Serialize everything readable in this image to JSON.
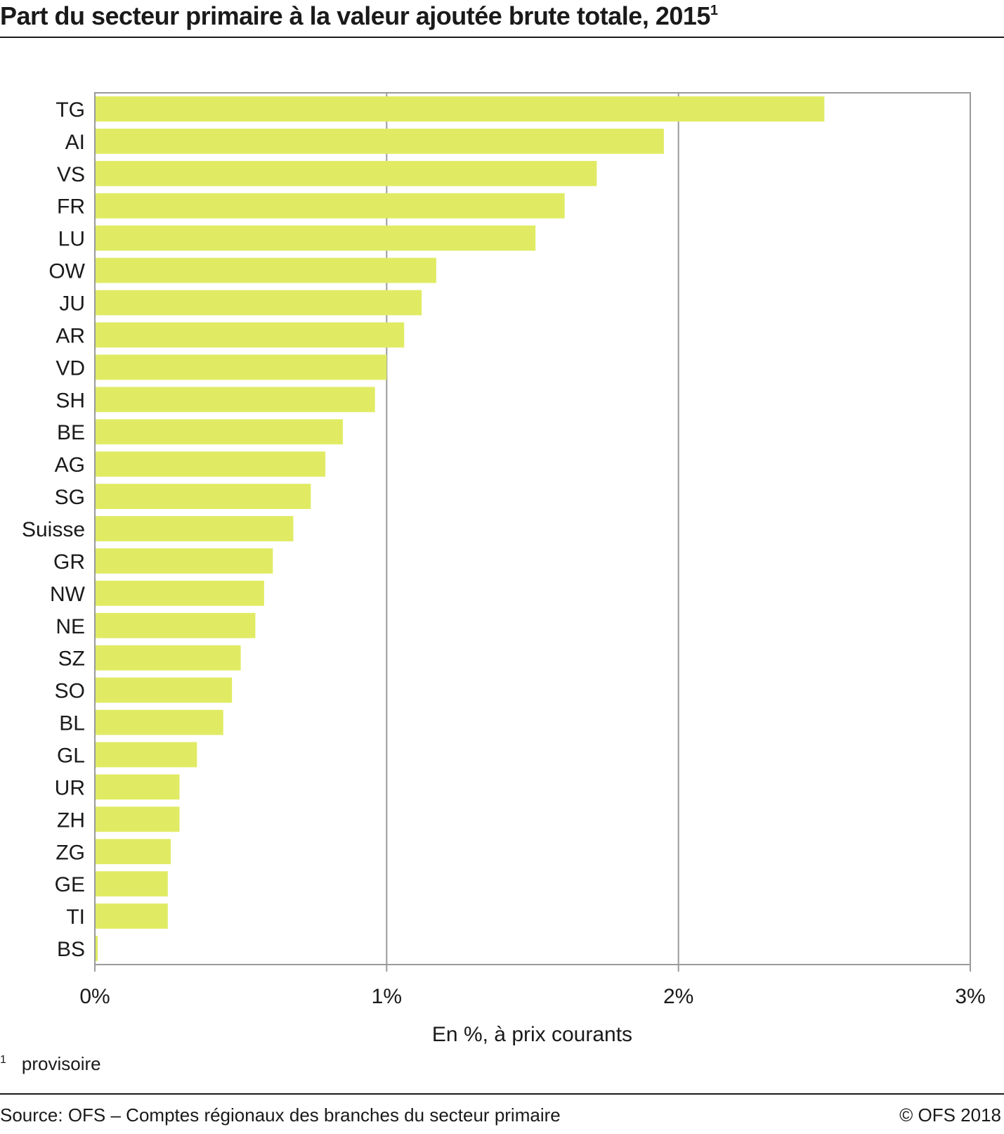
{
  "header": {
    "title": "Part du secteur primaire à la valeur ajoutée brute totale, 2015",
    "title_note_mark": "1"
  },
  "chart_data": {
    "type": "bar",
    "orientation": "horizontal",
    "categories": [
      "TG",
      "AI",
      "VS",
      "FR",
      "LU",
      "OW",
      "JU",
      "AR",
      "VD",
      "SH",
      "BE",
      "AG",
      "SG",
      "Suisse",
      "GR",
      "NW",
      "NE",
      "SZ",
      "SO",
      "BL",
      "GL",
      "UR",
      "ZH",
      "ZG",
      "GE",
      "TI",
      "BS"
    ],
    "values": [
      2.5,
      1.95,
      1.72,
      1.61,
      1.51,
      1.17,
      1.12,
      1.06,
      1.0,
      0.96,
      0.85,
      0.79,
      0.74,
      0.68,
      0.61,
      0.58,
      0.55,
      0.5,
      0.47,
      0.44,
      0.35,
      0.29,
      0.29,
      0.26,
      0.25,
      0.25,
      0.01
    ],
    "xlim": [
      0,
      3
    ],
    "xticks": [
      0,
      1,
      2,
      3
    ],
    "xtick_labels": [
      "0%",
      "1%",
      "2%",
      "3%"
    ],
    "xlabel": "En %, à prix courants",
    "grid": "vertical",
    "bar_color": "#e0eb63",
    "grid_color": "#9a9a9a"
  },
  "footnote": {
    "mark": "1",
    "text": "provisoire"
  },
  "footer": {
    "source": "Source: OFS – Comptes régionaux des branches du secteur primaire",
    "copyright": "© OFS  2018"
  }
}
